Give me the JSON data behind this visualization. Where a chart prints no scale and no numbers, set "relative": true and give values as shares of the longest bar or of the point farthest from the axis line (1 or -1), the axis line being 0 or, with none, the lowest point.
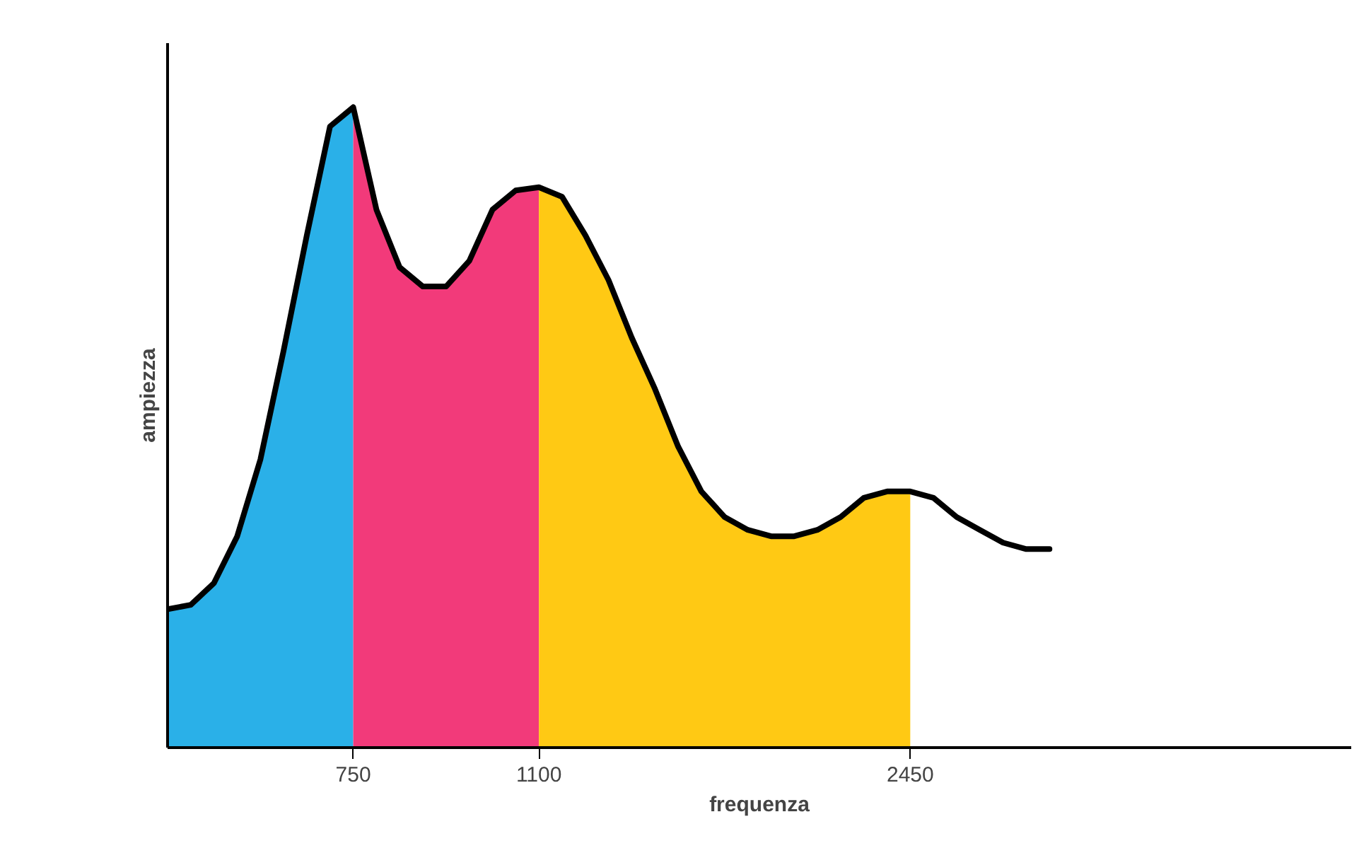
{
  "chart_data": {
    "type": "area",
    "relative": true,
    "xlabel": "frequenza",
    "ylabel": "ampiezza",
    "categories": [
      null,
      null,
      null,
      null,
      null,
      null,
      null,
      null,
      "750",
      null,
      null,
      null,
      null,
      null,
      null,
      null,
      "1100",
      null,
      null,
      null,
      null,
      null,
      null,
      null,
      null,
      null,
      null,
      null,
      null,
      null,
      null,
      null,
      "2450",
      null,
      null,
      null,
      null,
      null,
      null,
      null,
      null,
      null,
      null,
      null,
      null,
      null,
      null,
      null,
      null,
      null,
      null,
      null
    ],
    "series": [
      {
        "color": "#2ab0e8",
        "values": [
          0.216,
          0.223,
          0.257,
          0.33,
          0.45,
          0.62,
          0.8,
          0.97,
          1.0,
          null,
          null,
          null,
          null,
          null,
          null,
          null,
          null,
          null,
          null,
          null,
          null,
          null,
          null,
          null,
          null,
          null,
          null,
          null,
          null,
          null,
          null,
          null,
          null,
          null,
          null,
          null,
          null,
          null,
          null,
          null,
          null,
          null,
          null,
          null,
          null,
          null,
          null,
          null,
          null,
          null,
          null,
          null
        ]
      },
      {
        "color": "#f23a7a",
        "values": [
          null,
          null,
          null,
          null,
          null,
          null,
          null,
          null,
          1.0,
          0.84,
          0.75,
          0.72,
          0.72,
          0.76,
          0.84,
          0.87,
          0.875,
          null,
          null,
          null,
          null,
          null,
          null,
          null,
          null,
          null,
          null,
          null,
          null,
          null,
          null,
          null,
          null,
          null,
          null,
          null,
          null,
          null,
          null,
          null,
          null,
          null,
          null,
          null,
          null,
          null,
          null,
          null,
          null,
          null,
          null,
          null
        ]
      },
      {
        "color": "#ffc914",
        "values": [
          null,
          null,
          null,
          null,
          null,
          null,
          null,
          null,
          null,
          null,
          null,
          null,
          null,
          null,
          null,
          null,
          0.875,
          0.86,
          0.8,
          0.73,
          0.64,
          0.56,
          0.47,
          0.4,
          0.36,
          0.34,
          0.33,
          0.33,
          0.34,
          0.36,
          0.39,
          0.4,
          0.4,
          null,
          null,
          null,
          null,
          null,
          null,
          null,
          null,
          null,
          null,
          null,
          null,
          null,
          null,
          null,
          null,
          null,
          null,
          null
        ]
      },
      {
        "type": "line",
        "color": "#000000",
        "values": [
          0.216,
          0.223,
          0.257,
          0.33,
          0.45,
          0.62,
          0.8,
          0.97,
          1.0,
          0.84,
          0.75,
          0.72,
          0.72,
          0.76,
          0.84,
          0.87,
          0.875,
          0.86,
          0.8,
          0.73,
          0.64,
          0.56,
          0.47,
          0.4,
          0.36,
          0.34,
          0.33,
          0.33,
          0.34,
          0.36,
          0.39,
          0.4,
          0.4,
          0.39,
          0.36,
          0.34,
          0.32,
          0.31,
          0.31,
          null,
          null,
          null,
          null,
          null,
          null,
          null,
          null,
          null,
          null,
          null,
          null,
          null
        ]
      }
    ]
  }
}
